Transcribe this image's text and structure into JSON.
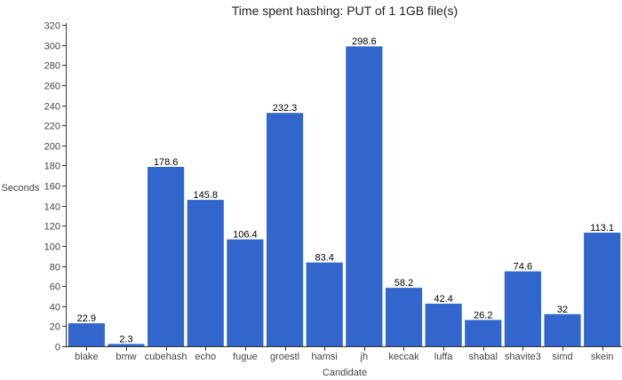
{
  "chart_data": {
    "type": "bar",
    "title": "Time spent hashing: PUT of 1 1GB file(s)",
    "xlabel": "Candidate",
    "ylabel": "Seconds",
    "categories": [
      "blake",
      "bmw",
      "cubehash",
      "echo",
      "fugue",
      "groestl",
      "hamsi",
      "jh",
      "keccak",
      "luffa",
      "shabal",
      "shavite3",
      "simd",
      "skein"
    ],
    "values": [
      22.9,
      2.3,
      178.6,
      145.8,
      106.4,
      232.3,
      83.4,
      298.6,
      58.2,
      42.4,
      26.2,
      74.6,
      32,
      113.1
    ],
    "value_labels": [
      "22.9",
      "2.3",
      "178.6",
      "145.8",
      "106.4",
      "232.3",
      "83.4",
      "298.6",
      "58.2",
      "42.4",
      "26.2",
      "74.6",
      "32",
      "113.1"
    ],
    "ylim": [
      0,
      320
    ],
    "yticks": [
      0,
      20,
      40,
      60,
      80,
      100,
      120,
      140,
      160,
      180,
      200,
      220,
      240,
      260,
      280,
      300,
      320
    ],
    "grid": false,
    "legend": "none",
    "bar_color": "#3366cc"
  }
}
